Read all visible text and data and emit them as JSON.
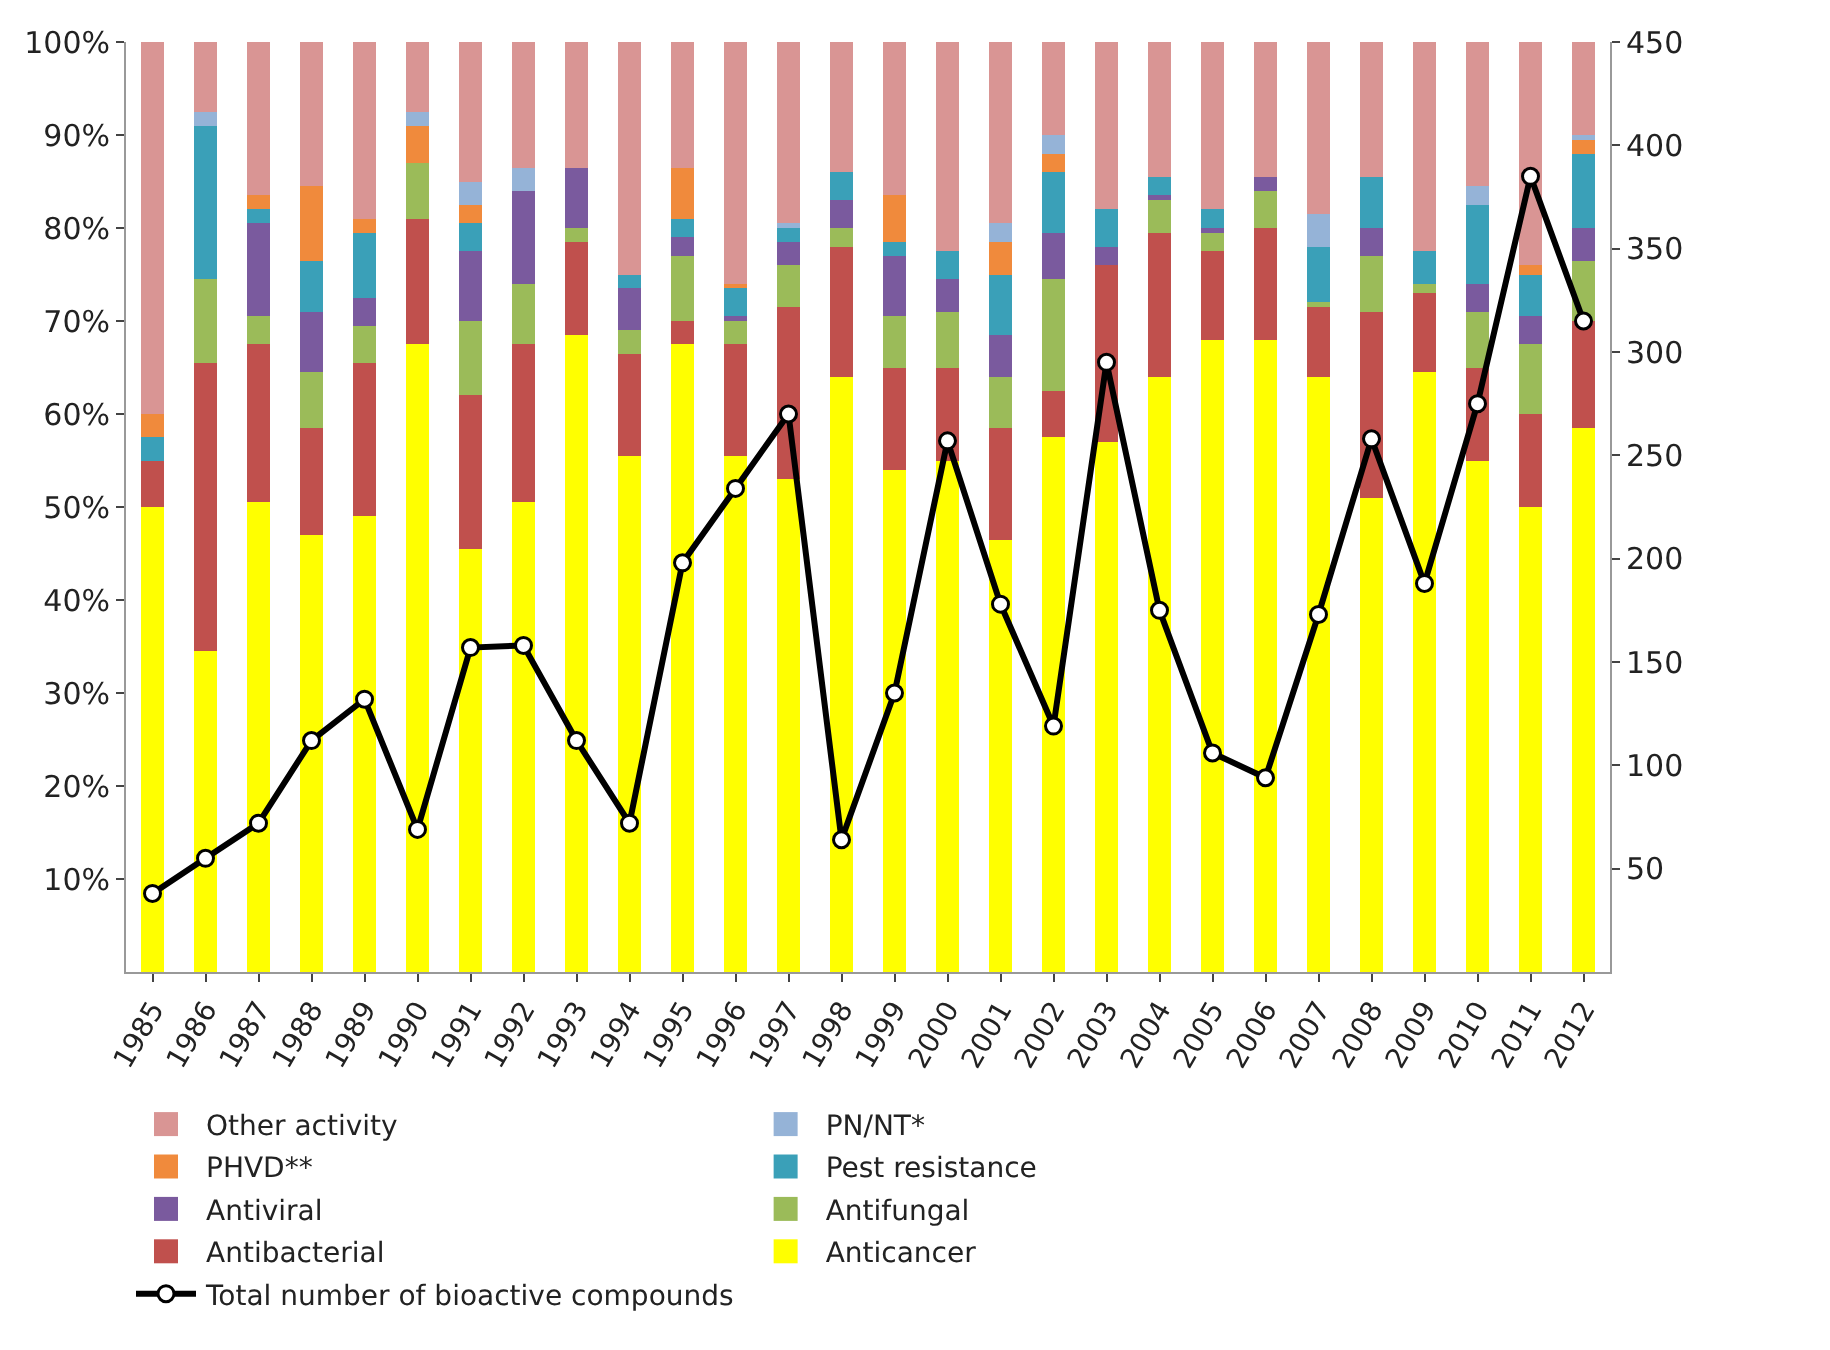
{
  "chart_data": {
    "type": "bar",
    "stacked": true,
    "categories": [
      "1985",
      "1986",
      "1987",
      "1988",
      "1989",
      "1990",
      "1991",
      "1992",
      "1993",
      "1994",
      "1995",
      "1996",
      "1997",
      "1998",
      "1999",
      "2000",
      "2001",
      "2002",
      "2003",
      "2004",
      "2005",
      "2006",
      "2007",
      "2008",
      "2009",
      "2010",
      "2011",
      "2012"
    ],
    "series": [
      {
        "name": "Anticancer",
        "color": "#ffff00",
        "values": [
          50,
          34.5,
          50.5,
          47,
          49,
          67.5,
          45.5,
          50.5,
          68.5,
          55.5,
          67.5,
          55.5,
          53,
          64,
          54,
          55,
          46.5,
          57.5,
          57,
          64,
          68,
          68,
          64,
          51,
          64.5,
          55,
          50,
          58.5
        ]
      },
      {
        "name": "Antibacterial",
        "color": "#c0504d",
        "values": [
          5,
          31,
          17,
          11.5,
          16.5,
          13.5,
          16.5,
          17,
          10,
          11,
          2.5,
          12,
          18.5,
          14,
          11,
          10,
          12,
          5,
          19,
          15.5,
          9.5,
          12,
          7.5,
          20,
          8.5,
          10,
          10,
          11.5
        ]
      },
      {
        "name": "Antifungal",
        "color": "#9bbb59",
        "values": [
          0,
          9,
          3,
          6,
          4,
          6,
          8,
          6.5,
          1.5,
          2.5,
          7,
          2.5,
          4.5,
          2,
          5.5,
          6,
          5.5,
          12,
          0,
          3.5,
          2,
          4,
          0.5,
          6,
          1,
          6,
          7.5,
          6.5
        ]
      },
      {
        "name": "Antiviral",
        "color": "#7a5a9e",
        "values": [
          0,
          0,
          10,
          6.5,
          3,
          0,
          7.5,
          10,
          6.5,
          4.5,
          2,
          0.5,
          2.5,
          3,
          6.5,
          3.5,
          4.5,
          5,
          2,
          0.5,
          0.5,
          1.5,
          0,
          3,
          0,
          3,
          3,
          3.5
        ]
      },
      {
        "name": "Pest resistance",
        "color": "#3aa0b8",
        "values": [
          2.5,
          16.5,
          1.5,
          5.5,
          7,
          0,
          3,
          0,
          0,
          1.5,
          2,
          3,
          1.5,
          3,
          1.5,
          3,
          6.5,
          6.5,
          4,
          2,
          2,
          0,
          6,
          5.5,
          3.5,
          8.5,
          4.5,
          8
        ]
      },
      {
        "name": "PHVD**",
        "color": "#f08a3c",
        "values": [
          2.5,
          0,
          1.5,
          8,
          1.5,
          4,
          2,
          0,
          0,
          0,
          5.5,
          0.5,
          0,
          0,
          5,
          0,
          3.5,
          2,
          0,
          0,
          0,
          0,
          0,
          0,
          0,
          0,
          1,
          1.5
        ]
      },
      {
        "name": "PN/NT*",
        "color": "#95b3d7",
        "values": [
          0,
          1.5,
          0,
          0,
          0,
          1.5,
          2.5,
          2.5,
          0,
          0,
          0,
          0,
          0.5,
          0,
          0,
          0,
          2,
          2,
          0,
          0,
          0,
          0,
          3.5,
          0,
          0,
          2,
          0,
          0.5
        ]
      },
      {
        "name": "Other activity",
        "color": "#d99594",
        "values": [
          40,
          7.5,
          16.5,
          15.5,
          19,
          7.5,
          15,
          13.5,
          13.5,
          25,
          13.5,
          26,
          19.5,
          14,
          16.5,
          22.5,
          19.5,
          10,
          18,
          14.5,
          18,
          14.5,
          18.5,
          14.5,
          22.5,
          15.5,
          24,
          10
        ]
      },
      {
        "name": "Total number of bioactive compounds",
        "type": "line",
        "axis": "y2",
        "color": "#000000",
        "marker": "circle",
        "values": [
          38,
          55,
          72,
          112,
          132,
          69,
          157,
          158,
          112,
          72,
          198,
          234,
          270,
          64,
          135,
          257,
          178,
          119,
          295,
          175,
          106,
          94,
          173,
          258,
          188,
          275,
          385,
          315
        ]
      }
    ],
    "ylim": [
      0,
      100
    ],
    "yticks": [
      {
        "value": 10,
        "label": "10%"
      },
      {
        "value": 20,
        "label": "20%"
      },
      {
        "value": 30,
        "label": "30%"
      },
      {
        "value": 40,
        "label": "40%"
      },
      {
        "value": 50,
        "label": "50%"
      },
      {
        "value": 60,
        "label": "60%"
      },
      {
        "value": 70,
        "label": "70%"
      },
      {
        "value": 80,
        "label": "80%"
      },
      {
        "value": 90,
        "label": "90%"
      },
      {
        "value": 100,
        "label": "100%"
      }
    ],
    "y2lim": [
      0,
      450
    ],
    "y2ticks": [
      50,
      100,
      150,
      200,
      250,
      300,
      350,
      400,
      450
    ],
    "legend": "bottom"
  }
}
